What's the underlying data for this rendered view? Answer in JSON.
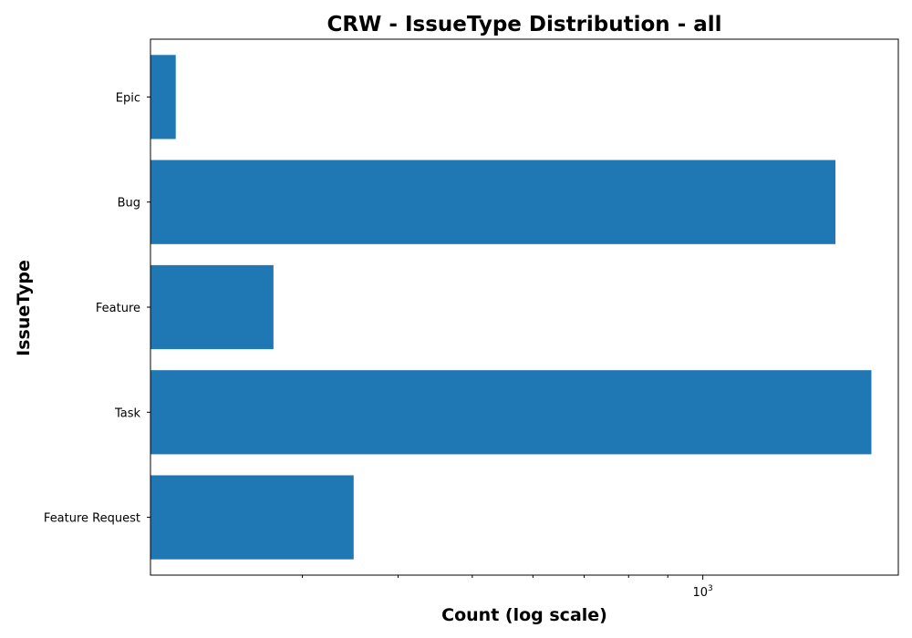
{
  "chart_data": {
    "type": "bar",
    "orientation": "horizontal",
    "title": "CRW - IssueType Distribution - all",
    "xlabel": "Count (log scale)",
    "ylabel": "IssueType",
    "x_scale": "log",
    "xlim": [
      190,
      1800
    ],
    "x_major_ticks": [
      {
        "value": 1000,
        "label": "10^3",
        "base": "10",
        "exp": "3"
      }
    ],
    "x_minor_ticks": [
      300,
      400,
      500,
      600,
      700,
      800,
      900
    ],
    "categories": [
      "Epic",
      "Bug",
      "Feature",
      "Task",
      "Feature Request"
    ],
    "values": [
      205,
      1490,
      275,
      1660,
      350
    ],
    "bar_color": "#1f77b4",
    "grid": false,
    "legend": "none"
  }
}
